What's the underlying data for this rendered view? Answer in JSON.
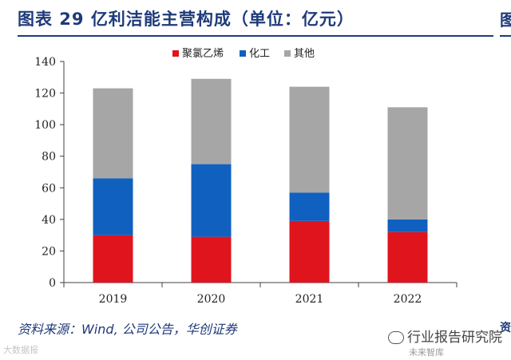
{
  "figure": {
    "title": "图表 29 亿利洁能主营构成（单位：亿元）",
    "source": "资料来源：Wind, 公司公告，华创证券",
    "edge_fragment_top": "图",
    "edge_fragment_bottom": "资"
  },
  "watermark": {
    "left": "大数据报",
    "right_title": "行业报告研究院",
    "right_sub": "未来智库"
  },
  "colors": {
    "title": "#1f3a7a",
    "series": [
      "#e0141c",
      "#1060c0",
      "#a6a6a6"
    ]
  },
  "chart_data": {
    "type": "bar",
    "stacked": true,
    "title": "图表 29 亿利洁能主营构成（单位：亿元）",
    "xlabel": "",
    "ylabel": "",
    "categories": [
      "2019",
      "2020",
      "2021",
      "2022"
    ],
    "ylim": [
      0,
      140
    ],
    "yticks": [
      0,
      20,
      40,
      60,
      80,
      100,
      120,
      140
    ],
    "legend_position": "top-right",
    "series": [
      {
        "name": "聚氯乙烯",
        "color": "#e0141c",
        "values": [
          30,
          29,
          39,
          32
        ]
      },
      {
        "name": "化工",
        "color": "#1060c0",
        "values": [
          36,
          46,
          18,
          8
        ]
      },
      {
        "name": "其他",
        "color": "#a6a6a6",
        "values": [
          57,
          54,
          67,
          71
        ]
      }
    ]
  }
}
